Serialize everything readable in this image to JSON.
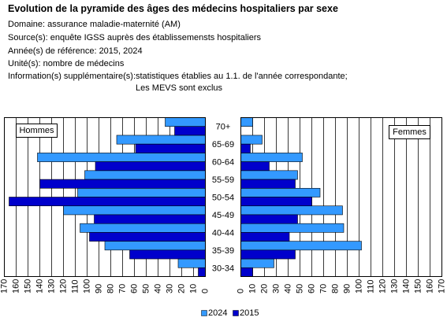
{
  "header": {
    "title": "Evolution de la pyramide des âges des médecins hospitaliers par sexe",
    "domaine": "Domaine: assurance maladie-maternité (AM)",
    "source": "Source(s): enquête IGSS auprès des établissemensts hospitaliers",
    "annees": "Année(s) de référence: 2015, 2024",
    "unite": "Unité(s): nombre de médecins",
    "info": "Information(s) supplémentaire(s):statistiques établies au 1.1. de l'année correspondante;",
    "info_suite": "Les MEVS sont exclus"
  },
  "chart_data": {
    "type": "bar",
    "orientation": "horizontal",
    "categories": [
      "70+",
      "65-69",
      "60-64",
      "55-59",
      "50-54",
      "45-49",
      "40-44",
      "35-39",
      "30-34"
    ],
    "series": [
      {
        "name": "2024",
        "color": "#3399FF"
      },
      {
        "name": "2015",
        "color": "#0000CC"
      }
    ],
    "panels": [
      {
        "label": "Hommes",
        "values": [
          [
            34,
            75,
            142,
            102,
            108,
            120,
            106,
            85,
            23
          ],
          [
            26,
            59,
            93,
            140,
            166,
            94,
            98,
            64,
            6
          ]
        ]
      },
      {
        "label": "Femmes",
        "values": [
          [
            10,
            18,
            52,
            48,
            67,
            86,
            87,
            102,
            28
          ],
          [
            0,
            8,
            24,
            46,
            60,
            48,
            41,
            46,
            10
          ]
        ]
      }
    ],
    "xlim": [
      0,
      170
    ],
    "xticks": [
      0,
      10,
      20,
      30,
      40,
      50,
      60,
      70,
      80,
      90,
      100,
      110,
      120,
      130,
      140,
      150,
      160,
      170
    ],
    "grid": true,
    "legend": "bottom"
  }
}
